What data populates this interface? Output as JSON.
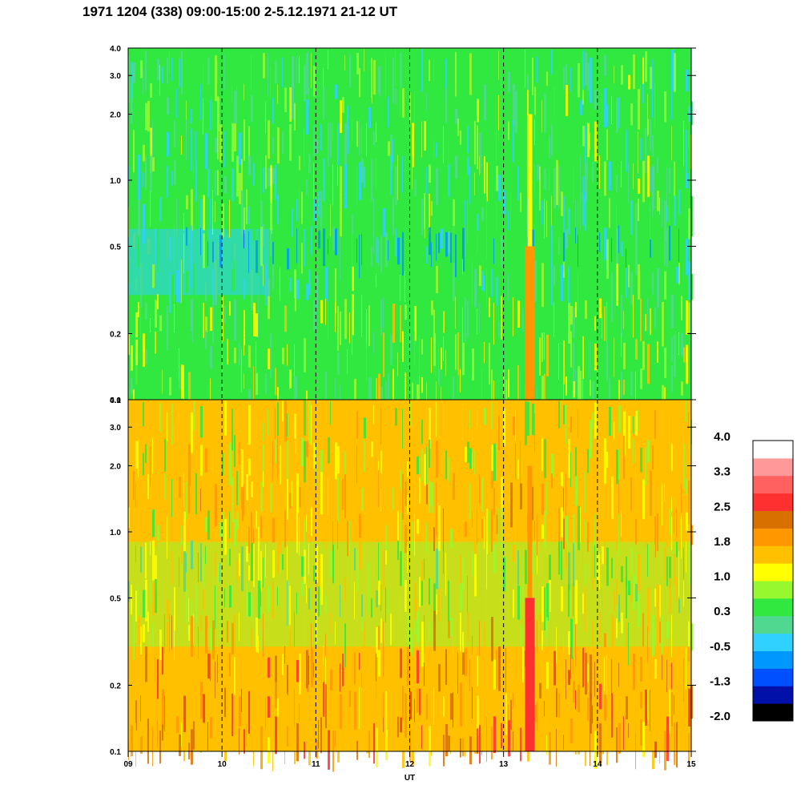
{
  "title": "1971 1204 (338) 09:00-15:00 2-5.12.1971  21-12 UT",
  "chart_data": {
    "type": "heatmap",
    "xlabel": "UT",
    "x_ticks": [
      "09",
      "10",
      "11",
      "12",
      "13",
      "14",
      "15"
    ],
    "x_range": [
      9,
      15
    ],
    "y_scale": "log",
    "y_range": [
      0.1,
      4.0
    ],
    "y_ticks": [
      "4.0",
      "3.0",
      "2.0",
      "1.0",
      "0.5",
      "0.2",
      "0.1"
    ],
    "y_tick_values": [
      4.0,
      3.0,
      2.0,
      1.0,
      0.5,
      0.2,
      0.1
    ],
    "dashed_gridlines_x": [
      10,
      11,
      12,
      13,
      14
    ],
    "panels": [
      {
        "name": "upper",
        "dominant_level": 0.3,
        "features": [
          {
            "description_value": "band",
            "x_center": 13.28,
            "x_width": 0.1,
            "y_from": 0.1,
            "y_to": 0.5,
            "level": 1.8
          },
          {
            "description_value": "streak",
            "x_center": 13.28,
            "x_width": 0.05,
            "y_from": 0.5,
            "y_to": 2.0,
            "level": 1.0
          },
          {
            "description_value": "low-region",
            "x_from": 9.0,
            "x_to": 10.5,
            "y_from": 0.3,
            "y_to": 0.6,
            "level": -0.5
          }
        ]
      },
      {
        "name": "lower",
        "dominant_level": 1.4,
        "features": [
          {
            "description_value": "band",
            "x_center": 13.28,
            "x_width": 0.1,
            "y_from": 0.1,
            "y_to": 0.5,
            "level": 2.5
          },
          {
            "description_value": "streak",
            "x_center": 13.28,
            "x_width": 0.05,
            "y_from": 0.5,
            "y_to": 2.0,
            "level": 1.8
          },
          {
            "description_value": "mid-region",
            "x_from": 9.0,
            "x_to": 15.0,
            "y_from": 0.3,
            "y_to": 0.9,
            "level": 0.8
          }
        ]
      }
    ],
    "colorbar": {
      "tick_labels": [
        "4.0",
        "3.3",
        "2.5",
        "1.8",
        "1.0",
        "0.3",
        "-0.5",
        "-1.3",
        "-2.0"
      ],
      "range": [
        -2.0,
        4.0
      ],
      "colors": [
        "#000000",
        "#0010a8",
        "#0050ff",
        "#0098ff",
        "#30d0ff",
        "#50d890",
        "#30e840",
        "#98f830",
        "#ffff00",
        "#ffc000",
        "#ff9800",
        "#d87000",
        "#ff3030",
        "#ff6060",
        "#ff9898",
        "#ffffff"
      ]
    }
  }
}
